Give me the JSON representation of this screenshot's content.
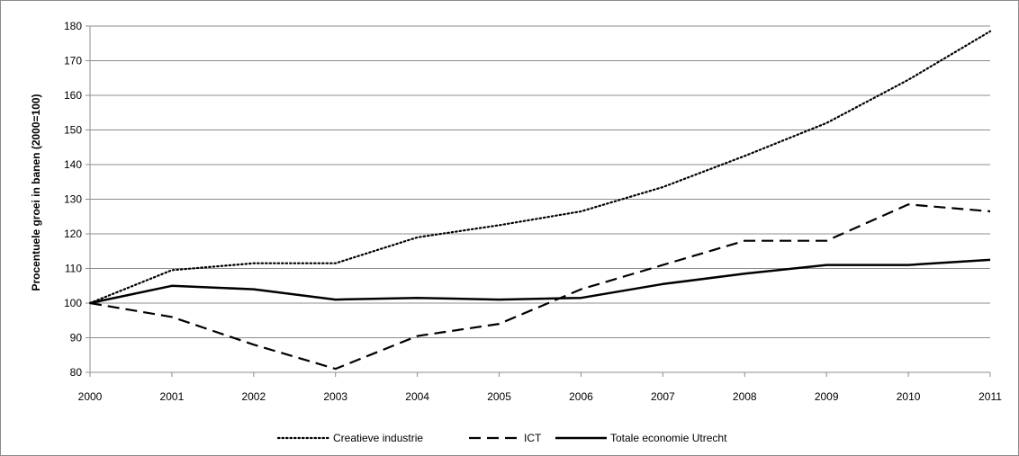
{
  "chart_data": {
    "type": "line",
    "title": "",
    "xlabel": "",
    "ylabel": "Procentuele groei in banen (2000=100)",
    "x": [
      "2000",
      "2001",
      "2002",
      "2003",
      "2004",
      "2005",
      "2006",
      "2007",
      "2008",
      "2009",
      "2010",
      "2011"
    ],
    "ylim": [
      80,
      180
    ],
    "yticks": [
      "80",
      "90",
      "100",
      "110",
      "120",
      "130",
      "140",
      "150",
      "160",
      "170",
      "180"
    ],
    "grid": "horizontal",
    "legend_position": "bottom",
    "series": [
      {
        "name": "Creatieve industrie",
        "style": "dotted",
        "values": [
          100,
          109.5,
          111.5,
          111.5,
          119,
          122.5,
          126.5,
          133.5,
          142.5,
          152,
          164.5,
          178.5
        ]
      },
      {
        "name": "ICT",
        "style": "dashed",
        "values": [
          100,
          96,
          88,
          81,
          90.5,
          94,
          104,
          111,
          118,
          118,
          128.5,
          126.5
        ]
      },
      {
        "name": "Totale economie Utrecht",
        "style": "solid",
        "values": [
          100,
          105,
          104,
          101,
          101.5,
          101,
          101.5,
          105.5,
          108.5,
          111,
          111,
          112.5
        ]
      }
    ]
  }
}
